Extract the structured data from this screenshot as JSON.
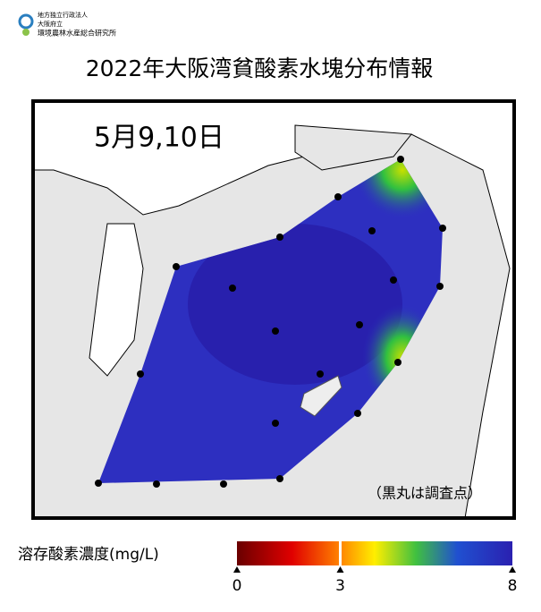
{
  "header": {
    "org_lines": [
      "地方独立行政法人",
      "大阪府立",
      "環境農林水産総合研究所"
    ]
  },
  "title": "2022年大阪湾貧酸素水塊分布情報",
  "map": {
    "date": "5月9,10日",
    "note": "（黒丸は調査点）"
  },
  "legend": {
    "label": "溶存酸素濃度(mg/L)",
    "ticks": [
      0,
      3,
      8
    ]
  }
}
